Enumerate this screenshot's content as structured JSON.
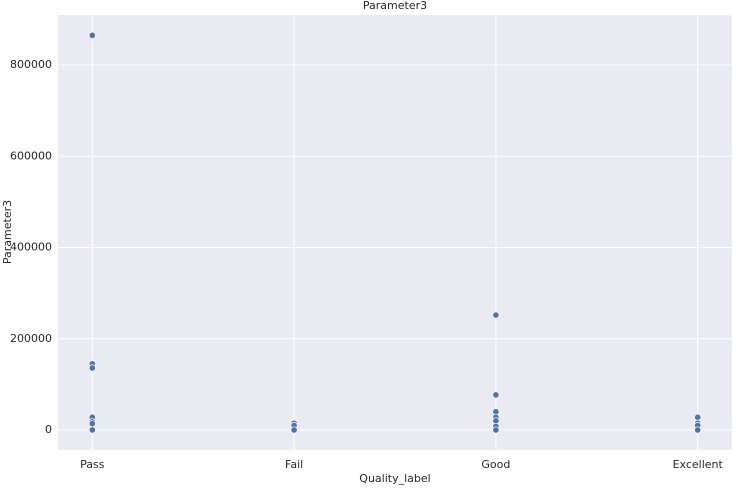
{
  "chart_data": {
    "type": "scatter",
    "title": "Parameter3",
    "x_label": "Quality_label",
    "y_label": "Parameter3",
    "categories": [
      "Pass",
      "Fail",
      "Good",
      "Excellent"
    ],
    "series": [
      {
        "color": "#4c72b0",
        "x": [
          "Pass",
          "Pass",
          "Pass",
          "Pass",
          "Pass",
          "Pass",
          "Pass",
          "Fail",
          "Fail",
          "Fail",
          "Good",
          "Good",
          "Good",
          "Good",
          "Good",
          "Good",
          "Good",
          "Excellent",
          "Excellent",
          "Excellent",
          "Excellent"
        ],
        "values": [
          865000,
          145000,
          136000,
          28000,
          18000,
          14000,
          0,
          15000,
          10000,
          0,
          252000,
          77000,
          40000,
          28000,
          20000,
          8000,
          0,
          28000,
          15000,
          10000,
          0
        ]
      }
    ],
    "ylim": [
      -43800,
      909600
    ],
    "yticks": [
      0,
      200000,
      400000,
      600000,
      800000
    ],
    "grid": true
  }
}
